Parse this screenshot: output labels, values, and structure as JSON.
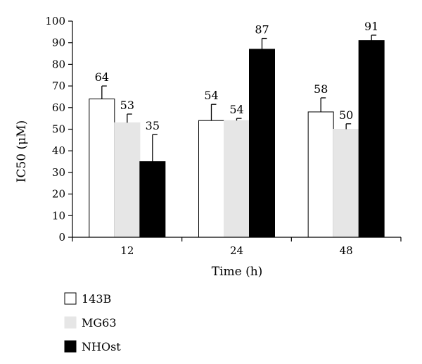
{
  "chart_data": {
    "type": "bar",
    "title": "",
    "xlabel": "Time (h)",
    "ylabel": "IC50 (μM)",
    "ylim": [
      0,
      100
    ],
    "yticks": [
      0,
      10,
      20,
      30,
      40,
      50,
      60,
      70,
      80,
      90,
      100
    ],
    "categories": [
      "12",
      "24",
      "48"
    ],
    "legend_position": "bottom-left",
    "series": [
      {
        "name": "143B",
        "color": "#ffffff",
        "values": [
          64,
          54,
          58
        ],
        "errors": [
          6,
          7.5,
          6.5
        ]
      },
      {
        "name": "MG63",
        "color": "#e6e6e6",
        "values": [
          53,
          54,
          50
        ],
        "errors": [
          4,
          1,
          2.5
        ]
      },
      {
        "name": "NHOst",
        "color": "#000000",
        "values": [
          35,
          87,
          91
        ],
        "errors": [
          12.5,
          5,
          2.5
        ]
      }
    ],
    "data_labels": [
      [
        "64",
        "54",
        "58"
      ],
      [
        "53",
        "54",
        "50"
      ],
      [
        "35",
        "87",
        "91"
      ]
    ],
    "grid": false
  }
}
